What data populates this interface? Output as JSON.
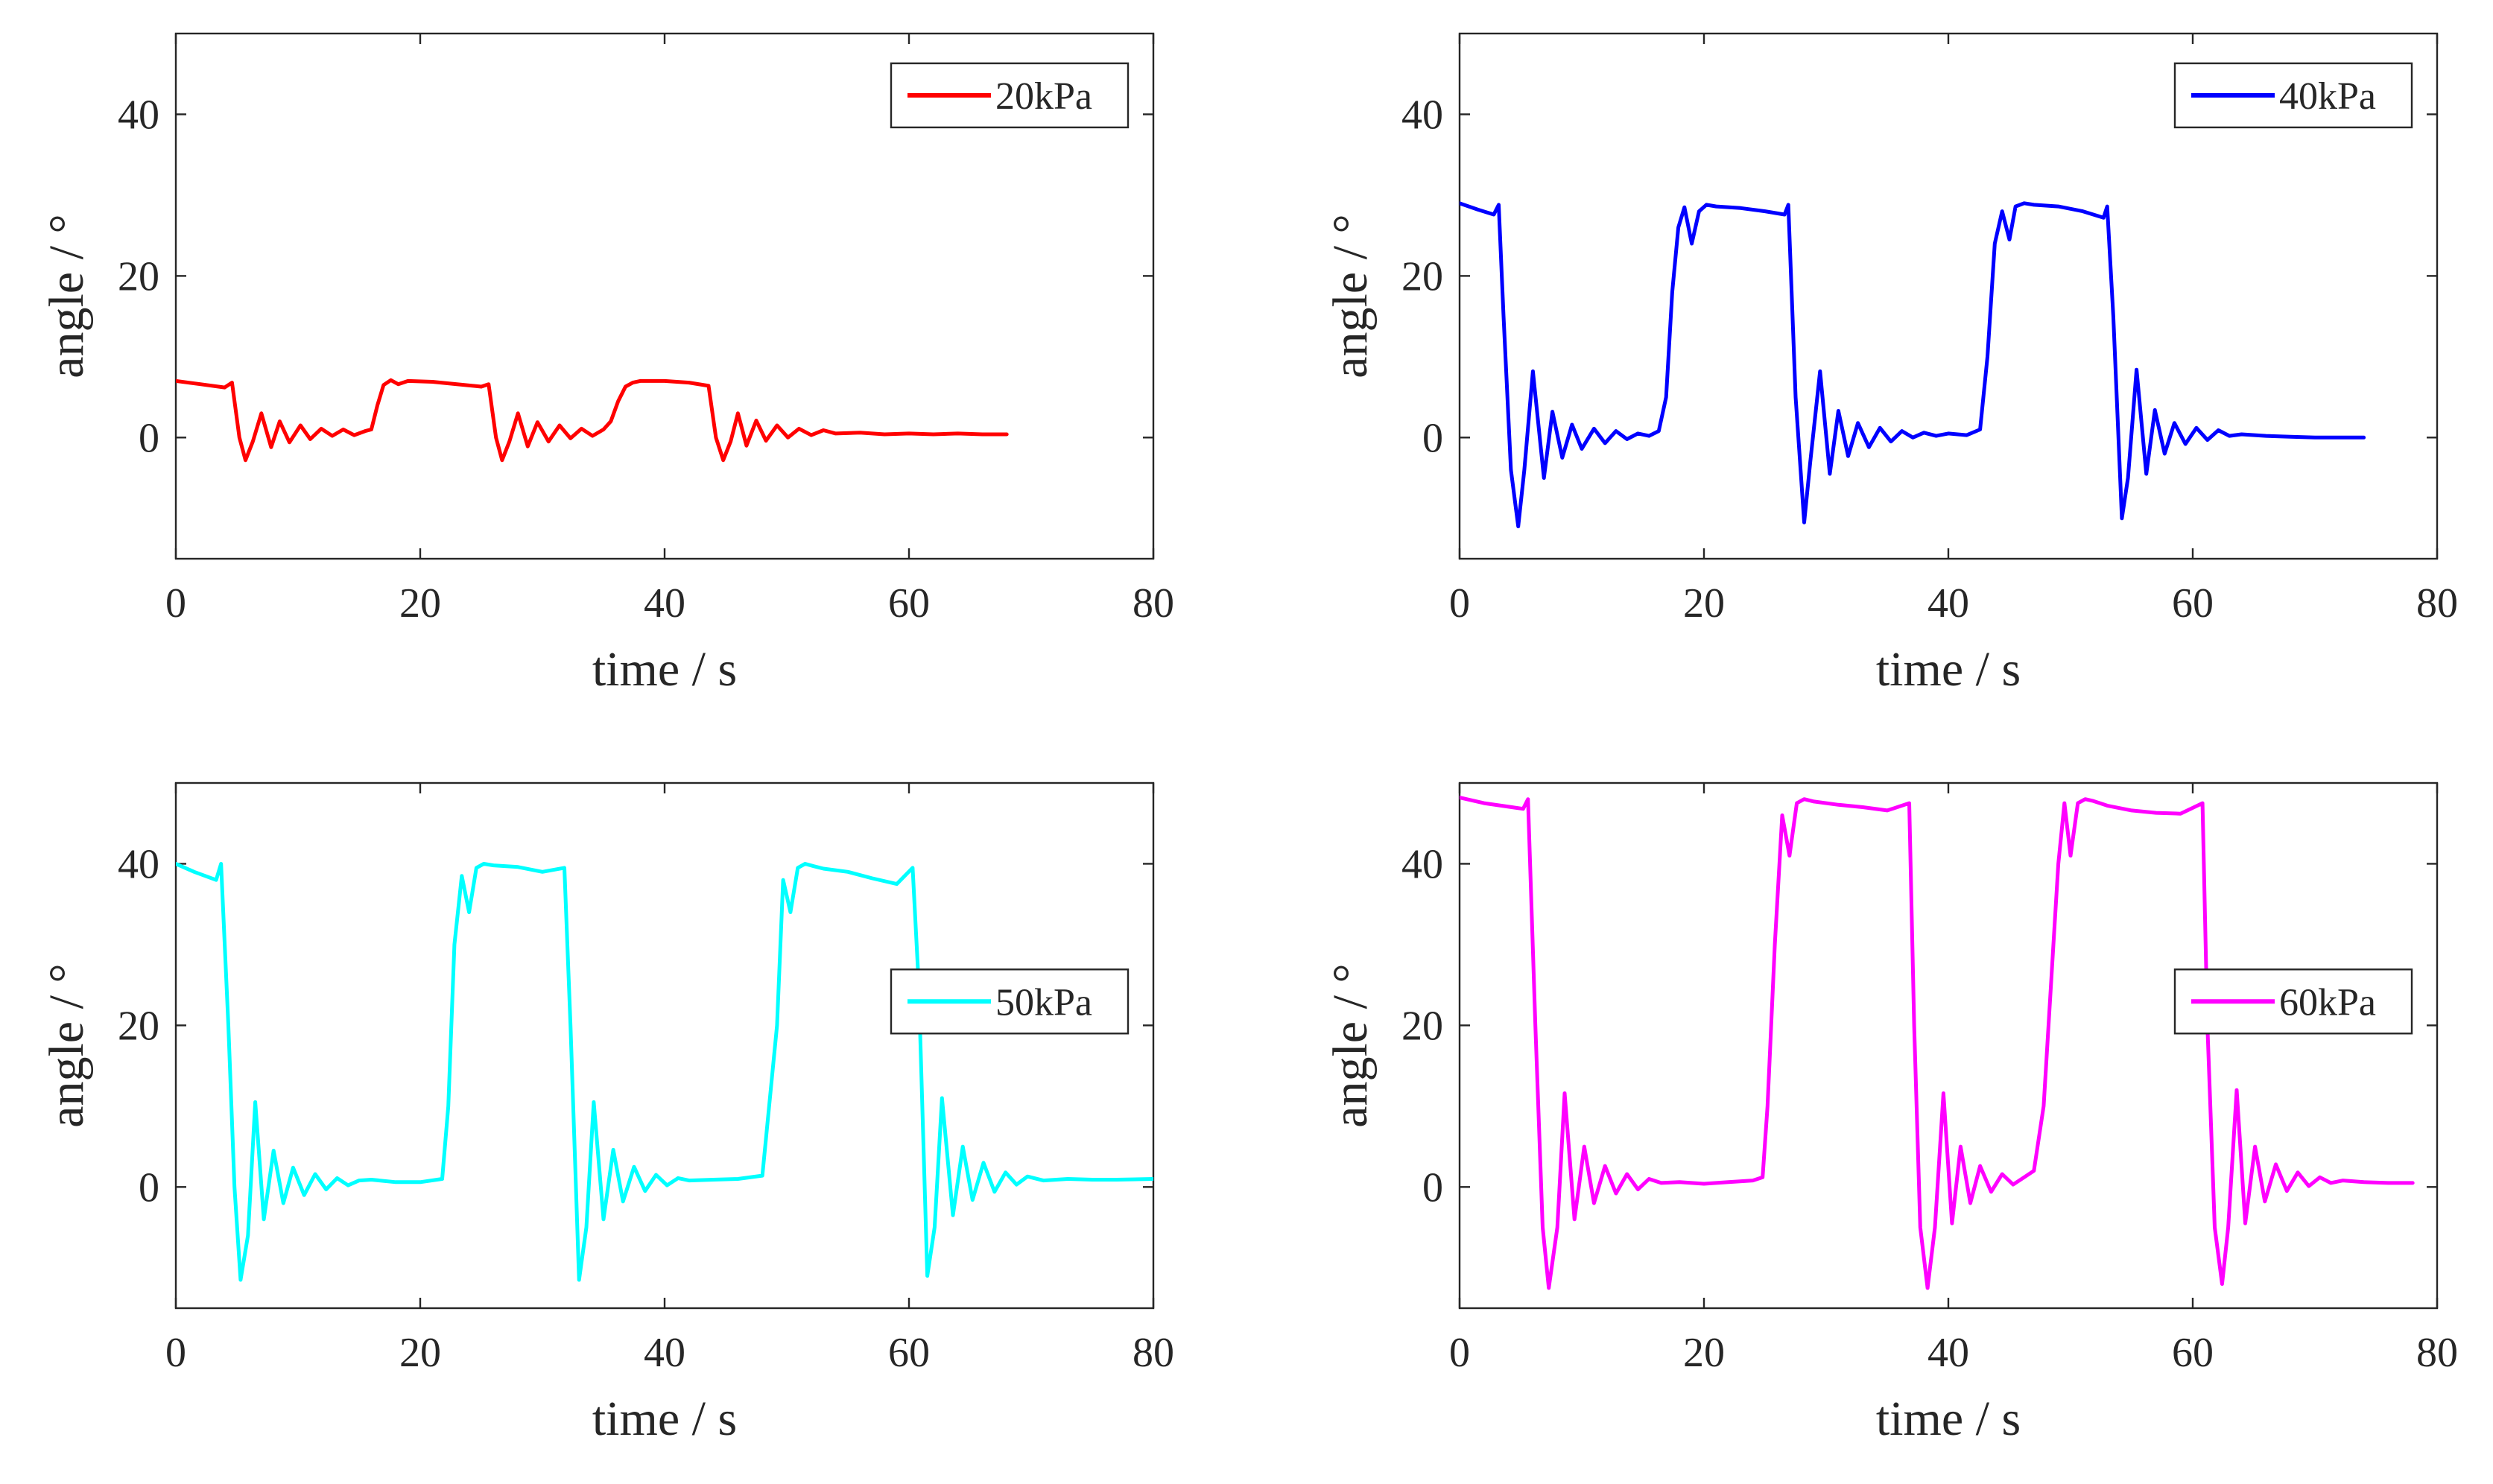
{
  "chart_data": [
    {
      "type": "line",
      "title": "",
      "xlabel": "time / s",
      "ylabel": "angle / °",
      "xlim": [
        0,
        80
      ],
      "ylim": [
        -15,
        50
      ],
      "xticks": [
        "0",
        "20",
        "40",
        "60",
        "80"
      ],
      "yticks": [
        "0",
        "20",
        "40"
      ],
      "legend_position": "top-right",
      "series": [
        {
          "name": "20kPa",
          "color": "#ff0000",
          "x": [
            0,
            2,
            4,
            4.6,
            5.2,
            5.7,
            6.3,
            7.0,
            7.8,
            8.5,
            9.3,
            10.2,
            11.0,
            11.9,
            12.8,
            13.7,
            14.6,
            15.5,
            16.0,
            16.5,
            17.0,
            17.6,
            18.2,
            19,
            21,
            23,
            25,
            25.6,
            26.2,
            26.7,
            27.3,
            28.0,
            28.8,
            29.6,
            30.5,
            31.4,
            32.3,
            33.2,
            34.1,
            35.0,
            35.6,
            36.2,
            36.8,
            37.4,
            38,
            40,
            42,
            43.6,
            44.2,
            44.8,
            45.4,
            46.0,
            46.7,
            47.5,
            48.3,
            49.2,
            50.1,
            51.0,
            52.0,
            53.0,
            54,
            56,
            58,
            60,
            62,
            64,
            66,
            68
          ],
          "y": [
            7,
            6.6,
            6.2,
            6.8,
            0,
            -2.8,
            -0.5,
            3.0,
            -1.2,
            2.0,
            -0.6,
            1.5,
            -0.2,
            1.1,
            0.2,
            1.0,
            0.3,
            0.8,
            1.0,
            4.0,
            6.5,
            7.1,
            6.6,
            7.0,
            6.9,
            6.6,
            6.3,
            6.6,
            0,
            -2.8,
            -0.5,
            3.0,
            -1.1,
            1.9,
            -0.5,
            1.5,
            -0.1,
            1.1,
            0.2,
            1.0,
            2.0,
            4.5,
            6.3,
            6.8,
            7.0,
            7.0,
            6.8,
            6.4,
            0,
            -2.8,
            -0.5,
            3.0,
            -1.0,
            2.1,
            -0.4,
            1.5,
            0,
            1.1,
            0.3,
            0.9,
            0.5,
            0.6,
            0.4,
            0.5,
            0.4,
            0.5,
            0.4,
            0.4
          ]
        }
      ]
    },
    {
      "type": "line",
      "title": "",
      "xlabel": "time / s",
      "ylabel": "angle / °",
      "xlim": [
        0,
        80
      ],
      "ylim": [
        -15,
        50
      ],
      "xticks": [
        "0",
        "20",
        "40",
        "60",
        "80"
      ],
      "yticks": [
        "0",
        "20",
        "40"
      ],
      "legend_position": "top-right",
      "series": [
        {
          "name": "40kPa",
          "color": "#0000ff",
          "x": [
            0,
            1.5,
            2.8,
            3.2,
            3.6,
            4.2,
            4.8,
            5.3,
            6.0,
            6.9,
            7.6,
            8.4,
            9.2,
            10.0,
            11.0,
            11.9,
            12.8,
            13.7,
            14.6,
            15.5,
            16.3,
            16.9,
            17.4,
            17.9,
            18.4,
            19.0,
            19.6,
            20.2,
            21,
            23,
            25,
            26.6,
            26.9,
            27.5,
            28.2,
            28.7,
            29.5,
            30.3,
            31.0,
            31.8,
            32.6,
            33.5,
            34.4,
            35.3,
            36.2,
            37.1,
            38.0,
            39.0,
            40,
            41.5,
            42.6,
            43.2,
            43.8,
            44.4,
            45.0,
            45.5,
            46.2,
            47,
            49,
            51,
            52.7,
            53.0,
            53.5,
            54.2,
            54.7,
            55.4,
            56.2,
            56.9,
            57.7,
            58.5,
            59.4,
            60.3,
            61.2,
            62.1,
            63.0,
            64,
            66,
            68,
            70,
            72,
            74
          ],
          "y": [
            29,
            28.2,
            27.6,
            28.8,
            15,
            -4,
            -11,
            -4,
            8.2,
            -5,
            3.2,
            -2.5,
            1.6,
            -1.4,
            1.1,
            -0.7,
            0.8,
            -0.2,
            0.5,
            0.2,
            0.8,
            5,
            18,
            26,
            28.5,
            24,
            28,
            28.8,
            28.6,
            28.4,
            28,
            27.6,
            28.8,
            5,
            -10.5,
            -3,
            8.2,
            -4.5,
            3.3,
            -2.3,
            1.8,
            -1.2,
            1.2,
            -0.5,
            0.8,
            0,
            0.6,
            0.2,
            0.5,
            0.3,
            1.0,
            10,
            24,
            28,
            24.5,
            28.6,
            29,
            28.8,
            28.6,
            28.0,
            27.2,
            28.6,
            15,
            -10,
            -5,
            8.4,
            -4.5,
            3.4,
            -2.0,
            1.8,
            -0.8,
            1.2,
            -0.3,
            0.9,
            0.2,
            0.4,
            0.2,
            0.1,
            0,
            0,
            0
          ]
        }
      ]
    },
    {
      "type": "line",
      "title": "",
      "xlabel": "time / s",
      "ylabel": "angle / °",
      "xlim": [
        0,
        80
      ],
      "ylim": [
        -15,
        50
      ],
      "xticks": [
        "0",
        "20",
        "40",
        "60",
        "80"
      ],
      "yticks": [
        "0",
        "20",
        "40"
      ],
      "legend_position": "right",
      "series": [
        {
          "name": "50kPa",
          "color": "#00ffff",
          "x": [
            0,
            1.5,
            3.3,
            3.7,
            4.3,
            4.8,
            5.3,
            5.9,
            6.5,
            7.2,
            8.0,
            8.8,
            9.6,
            10.5,
            11.4,
            12.3,
            13.2,
            14.1,
            15.0,
            16,
            18,
            20,
            21.8,
            22.3,
            22.8,
            23.4,
            24.0,
            24.6,
            25.2,
            26,
            28,
            30,
            31.8,
            32.3,
            33.0,
            33.6,
            34.2,
            35.0,
            35.8,
            36.6,
            37.5,
            38.4,
            39.3,
            40.2,
            41.1,
            42,
            44,
            46,
            48,
            49.2,
            49.7,
            50.3,
            50.9,
            51.5,
            52.2,
            53,
            55,
            57,
            59,
            60.3,
            60.8,
            61.5,
            62.1,
            62.7,
            63.6,
            64.4,
            65.2,
            66.1,
            67.0,
            67.9,
            68.8,
            69.7,
            71,
            73,
            75,
            77,
            80
          ],
          "y": [
            40,
            39,
            38,
            40,
            20,
            0,
            -11.5,
            -6,
            10.5,
            -4,
            4.5,
            -2,
            2.4,
            -1,
            1.6,
            -0.3,
            1.1,
            0.2,
            0.8,
            0.9,
            0.6,
            0.6,
            1.0,
            10,
            30,
            38.5,
            34,
            39.5,
            40,
            39.8,
            39.6,
            39,
            39.5,
            20,
            -11.5,
            -5,
            10.5,
            -4,
            4.6,
            -1.8,
            2.5,
            -0.5,
            1.5,
            0.2,
            1.1,
            0.8,
            0.9,
            1.0,
            1.4,
            20,
            38,
            34,
            39.5,
            40,
            39.7,
            39.4,
            39.0,
            38.2,
            37.5,
            39.5,
            25,
            -11,
            -5,
            11,
            -3.5,
            5.0,
            -1.6,
            3.0,
            -0.6,
            1.8,
            0.3,
            1.3,
            0.8,
            1.0,
            0.9,
            0.9,
            1.0
          ]
        }
      ]
    },
    {
      "type": "line",
      "title": "",
      "xlabel": "time / s",
      "ylabel": "angle / °",
      "xlim": [
        0,
        80
      ],
      "ylim": [
        -15,
        50
      ],
      "xticks": [
        "0",
        "20",
        "40",
        "60",
        "80"
      ],
      "yticks": [
        "0",
        "20",
        "40"
      ],
      "legend_position": "right",
      "series": [
        {
          "name": "60kPa",
          "color": "#ff00ff",
          "x": [
            0,
            2,
            5.2,
            5.6,
            6.2,
            6.8,
            7.3,
            8.0,
            8.6,
            9.4,
            10.2,
            11.0,
            11.9,
            12.8,
            13.7,
            14.6,
            15.5,
            16.5,
            18,
            20,
            22,
            24,
            24.8,
            25.2,
            25.8,
            26.4,
            27.0,
            27.6,
            28.2,
            29,
            31,
            33,
            35,
            36.8,
            37.2,
            37.7,
            38.3,
            38.9,
            39.6,
            40.3,
            41.0,
            41.8,
            42.6,
            43.5,
            44.4,
            45.3,
            46.2,
            47.0,
            47.8,
            48.6,
            49.0,
            49.5,
            50.0,
            50.6,
            51.2,
            51.8,
            52.4,
            53,
            55,
            57,
            59,
            60.8,
            61.2,
            61.8,
            62.4,
            62.9,
            63.6,
            64.3,
            65.1,
            65.9,
            66.8,
            67.7,
            68.6,
            69.5,
            70.4,
            71.3,
            72.3,
            74,
            76,
            78
          ],
          "y": [
            48.2,
            47.5,
            46.8,
            48.0,
            20,
            -5,
            -12.5,
            -5,
            11.6,
            -4,
            5.0,
            -2,
            2.6,
            -0.8,
            1.6,
            -0.3,
            1.0,
            0.5,
            0.6,
            0.4,
            0.6,
            0.8,
            1.2,
            10,
            30,
            46,
            41,
            47.5,
            48,
            47.7,
            47.3,
            47,
            46.6,
            47.5,
            20,
            -5,
            -12.5,
            -5,
            11.6,
            -4.5,
            5.0,
            -2,
            2.6,
            -0.6,
            1.6,
            0.3,
            1.2,
            2.0,
            10,
            30,
            40,
            47.5,
            41,
            47.5,
            48,
            47.8,
            47.5,
            47.2,
            46.6,
            46.3,
            46.2,
            47.5,
            20,
            -5,
            -12,
            -5,
            12,
            -4.5,
            5.0,
            -1.8,
            2.8,
            -0.5,
            1.8,
            0.1,
            1.2,
            0.5,
            0.8,
            0.6,
            0.5,
            0.5
          ]
        }
      ]
    }
  ]
}
